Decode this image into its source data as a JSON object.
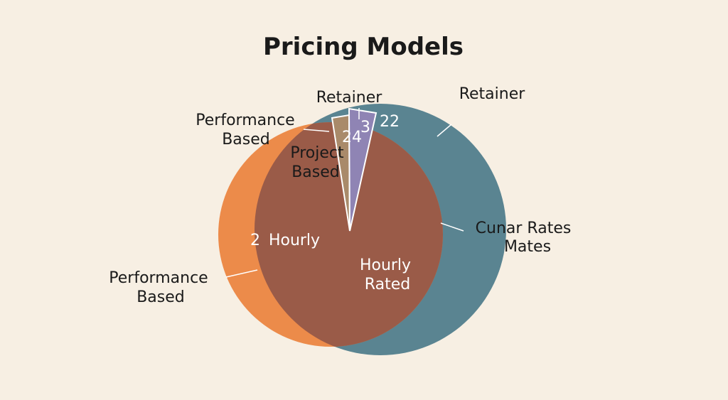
{
  "chart_data": {
    "type": "pie",
    "title": "Pricing Models",
    "colors": {
      "background": "#f7efe3",
      "orange": "#ec8b4a",
      "blue": "#5a8491",
      "overlap": "#9a5b48",
      "tan_wedge": "#a98a6a",
      "purple_wedge": "#8f84b4"
    },
    "regions": [
      {
        "name": "Performance Based",
        "color": "#ec8b4a"
      },
      {
        "name": "Retainer",
        "color": "#5a8491"
      },
      {
        "name": "Hourly Rated",
        "color": "#9a5b48"
      }
    ],
    "wedges": [
      {
        "name": "Project Based",
        "value": 24,
        "color": "#a98a6a"
      },
      {
        "name": "Retainer",
        "value": 3,
        "color": "#8f84b4"
      }
    ],
    "labels": {
      "retainer_top": "Retainer",
      "retainer_right": "Retainer",
      "performance_top": [
        "Performance",
        "Based"
      ],
      "performance_bottom": [
        "Performance",
        "Based"
      ],
      "project_based": [
        "Project",
        "Based"
      ],
      "cunar": [
        "Cunar Rates",
        "Mates"
      ],
      "hourly_left": "Hourly",
      "hourly_center": [
        "Hourly",
        "Rated"
      ]
    },
    "data_labels": {
      "v24": "24",
      "v3": "3",
      "v22": "22",
      "v2": "2"
    }
  }
}
